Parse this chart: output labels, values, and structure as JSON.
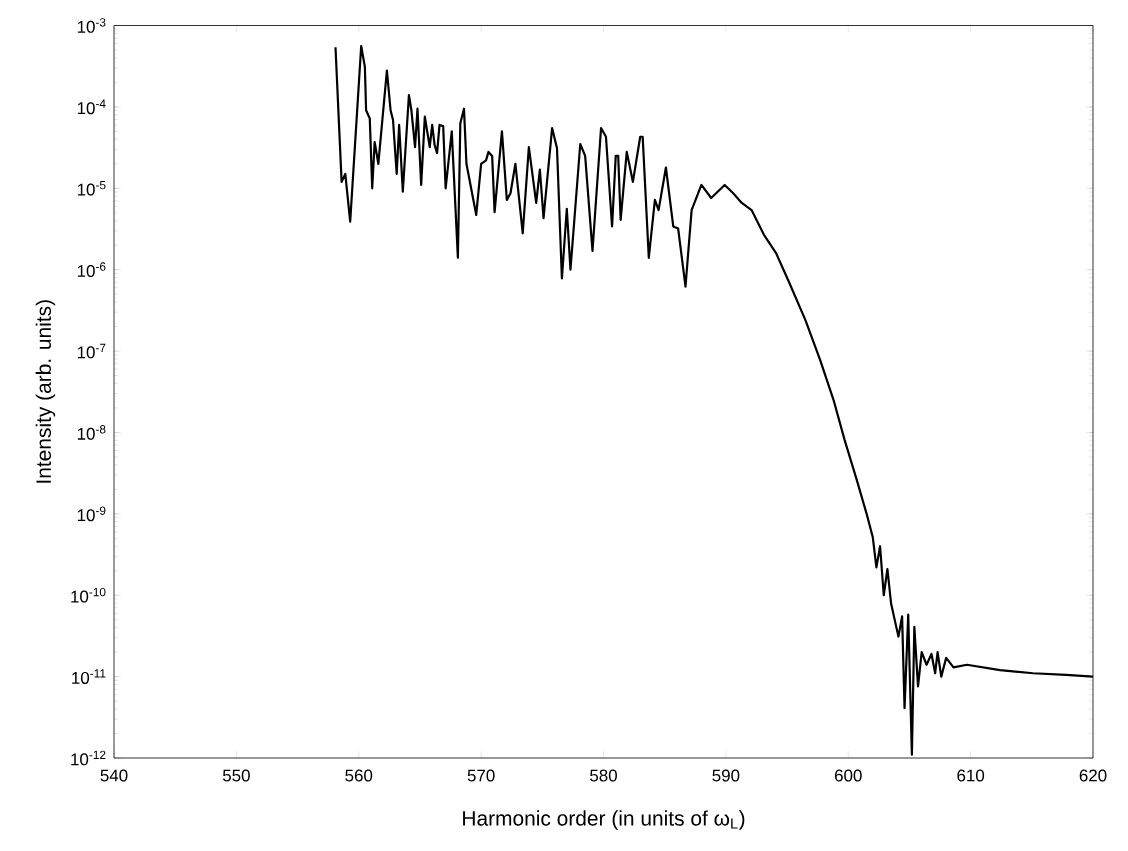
{
  "chart_data": {
    "type": "line",
    "xlabel": "Harmonic order (in units of ω$_{L}$)",
    "ylabel": "Intensity (arb. units)",
    "log": "y",
    "grid": false,
    "marker": "none",
    "line_style": "solid",
    "xlim": [
      540,
      620
    ],
    "xticks": [
      540,
      550,
      560,
      570,
      580,
      590,
      600,
      610,
      620
    ],
    "ylim": [
      1e-12,
      0.001
    ],
    "yticks": [
      {
        "value": 1e-12,
        "label": "10$^{-12}$"
      },
      {
        "value": 1e-11,
        "label": "10$^{-11}$"
      },
      {
        "value": 1e-10,
        "label": "10$^{-10}$"
      },
      {
        "value": 1e-09,
        "label": "10$^{-9}$"
      },
      {
        "value": 1e-08,
        "label": "10$^{-8}$"
      },
      {
        "value": 1e-07,
        "label": "10$^{-7}$"
      },
      {
        "value": 1e-06,
        "label": "10$^{-6}$"
      },
      {
        "value": 1e-05,
        "label": "10$^{-5}$"
      },
      {
        "value": 0.0001,
        "label": "10$^{-4}$"
      },
      {
        "value": 0.001,
        "label": "10$^{-3}$"
      }
    ],
    "series": [
      {
        "color": "#000000",
        "x": [
          558.1,
          558.6,
          558.9,
          559.3,
          560.2,
          560.5,
          560.6,
          560.9,
          561.1,
          561.3,
          561.6,
          562.3,
          562.6,
          562.8,
          563.1,
          563.3,
          563.6,
          564.1,
          564.3,
          564.6,
          564.8,
          565.1,
          565.4,
          565.8,
          566.0,
          566.2,
          566.4,
          566.6,
          566.9,
          567.1,
          567.6,
          568.1,
          568.3,
          568.6,
          568.8,
          569.6,
          570.0,
          570.4,
          570.6,
          570.9,
          571.1,
          571.7,
          572.1,
          572.4,
          572.8,
          573.4,
          573.9,
          574.5,
          574.8,
          575.1,
          575.8,
          576.2,
          576.6,
          577.0,
          577.3,
          578.1,
          578.5,
          579.1,
          579.8,
          580.2,
          580.7,
          581.0,
          581.2,
          581.4,
          581.9,
          582.4,
          583.0,
          583.2,
          583.7,
          584.2,
          584.5,
          585.1,
          585.7,
          586.1,
          586.7,
          587.2,
          588.0,
          588.8,
          589.9,
          590.6,
          591.3,
          592.1,
          593.1,
          594.1,
          595.2,
          596.5,
          597.7,
          598.8,
          599.7,
          600.7,
          601.5,
          602.0,
          602.3,
          602.6,
          602.9,
          603.2,
          603.5,
          604.1,
          604.4,
          604.6,
          604.9,
          605.2,
          605.4,
          605.7,
          606.0,
          606.4,
          606.8,
          607.1,
          607.3,
          607.6,
          608.0,
          608.6,
          609.7,
          612.4,
          615.1,
          617.8,
          620.0
        ],
        "values": [
          0.00054,
          1.2e-05,
          1.5e-05,
          3.9e-06,
          0.00056,
          0.00031,
          9.1e-05,
          7.2e-05,
          1e-05,
          3.7e-05,
          2e-05,
          0.00028,
          9.1e-05,
          6.9e-05,
          1.5e-05,
          6e-05,
          9.1e-06,
          0.00014,
          9.1e-05,
          3.2e-05,
          9.5e-05,
          1.1e-05,
          7.6e-05,
          3.2e-05,
          6e-05,
          3.4e-05,
          2.7e-05,
          6e-05,
          5.8e-05,
          1e-05,
          5e-05,
          1.4e-06,
          6.3e-05,
          9.5e-05,
          2e-05,
          4.7e-06,
          2e-05,
          2.2e-05,
          2.8e-05,
          2.5e-05,
          5.1e-06,
          5e-05,
          7.2e-06,
          8.7e-06,
          2e-05,
          2.8e-06,
          3.2e-05,
          6.6e-06,
          1.7e-05,
          4.3e-06,
          5.5e-05,
          3.1e-05,
          7.8e-07,
          5.6e-06,
          1e-06,
          3.5e-05,
          2.5e-05,
          1.7e-06,
          5.5e-05,
          4.3e-05,
          3.4e-06,
          2.5e-05,
          2.5e-05,
          4.1e-06,
          2.8e-05,
          1.2e-05,
          4.3e-05,
          4.3e-05,
          1.4e-06,
          7.2e-06,
          5.4e-06,
          1.8e-05,
          3.4e-06,
          3.2e-06,
          6.2e-07,
          5.4e-06,
          1.1e-05,
          7.6e-06,
          1.1e-05,
          8.7e-06,
          6.6e-06,
          5.4e-06,
          2.7e-06,
          1.6e-06,
          6.8e-07,
          2.4e-07,
          7.8e-08,
          2.5e-08,
          8.1e-09,
          2.6e-09,
          1e-09,
          5.2e-10,
          2.2e-10,
          4e-10,
          1e-10,
          2.1e-10,
          7.9e-11,
          3.1e-11,
          5.5e-11,
          4.1e-12,
          5.8e-11,
          1.1e-12,
          4.1e-11,
          7.6e-12,
          2e-11,
          1.4e-11,
          1.9e-11,
          1.1e-11,
          2e-11,
          1e-11,
          1.7e-11,
          1.3e-11,
          1.4e-11,
          1.2e-11,
          1.1e-11,
          1.05e-11,
          1e-11
        ]
      }
    ]
  }
}
